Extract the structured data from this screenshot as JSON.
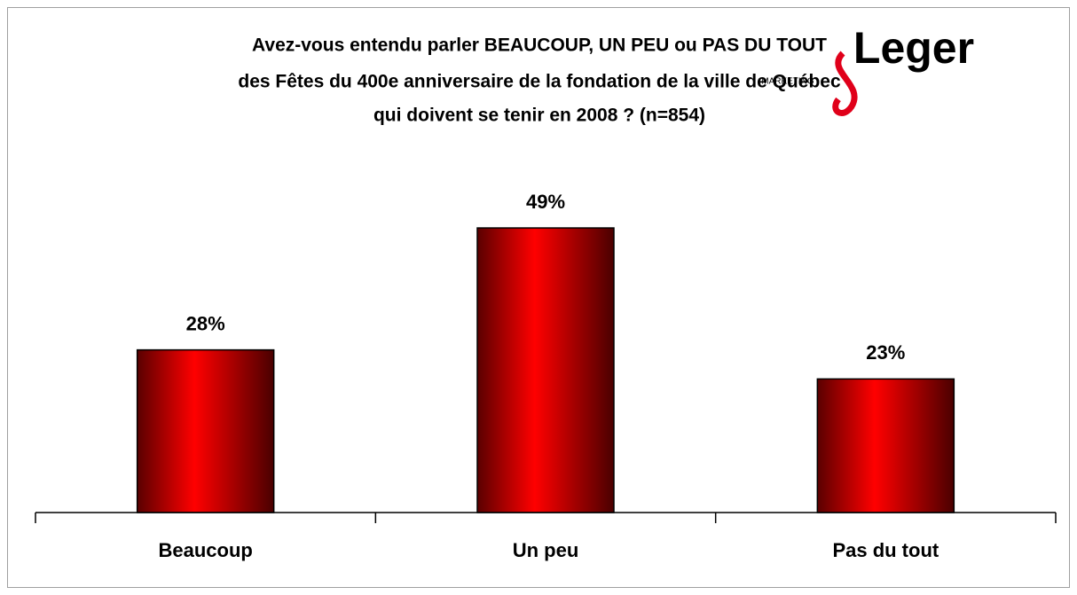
{
  "chart_data": {
    "type": "bar",
    "title": [
      "Avez-vous entendu parler BEAUCOUP, UN PEU ou PAS DU TOUT",
      "des Fêtes du 400e anniversaire de la fondation de la ville de Québec",
      "qui doivent se tenir en 2008 ? (n=854)"
    ],
    "logo_text": "Leger",
    "logo_subtext": "MARKETING",
    "categories": [
      "Beaucoup",
      "Un peu",
      "Pas du tout"
    ],
    "values": [
      28,
      49,
      23
    ],
    "value_labels": [
      "28%",
      "49%",
      "23%"
    ],
    "color": "#ff0000"
  }
}
